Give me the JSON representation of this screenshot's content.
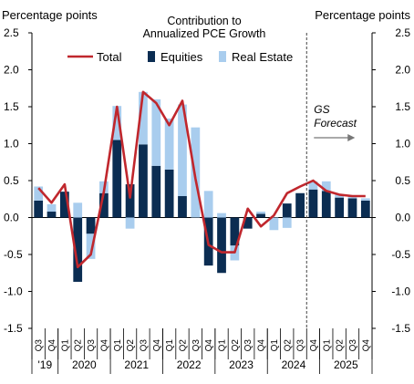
{
  "chart_data": {
    "type": "bar",
    "title": "Contribution to Annualized PCE Growth",
    "y_left_label": "Percentage points",
    "y_right_label": "Percentage points",
    "ylim": [
      -1.5,
      2.5
    ],
    "yticks": [
      -1.5,
      -1.0,
      -0.5,
      0.0,
      0.5,
      1.0,
      1.5,
      2.0,
      2.5
    ],
    "ytick_labels": [
      "-1.5",
      "-1.0",
      "-0.5",
      "0.0",
      "0.5",
      "1.0",
      "1.5",
      "2.0",
      "2.5"
    ],
    "legend_position": "top",
    "categories": [
      "Q3",
      "Q4",
      "Q1",
      "Q2",
      "Q3",
      "Q4",
      "Q1",
      "Q2",
      "Q3",
      "Q4",
      "Q1",
      "Q2",
      "Q3",
      "Q4",
      "Q1",
      "Q2",
      "Q3",
      "Q4",
      "Q1",
      "Q2",
      "Q3",
      "Q4",
      "Q1",
      "Q2",
      "Q3",
      "Q4"
    ],
    "year_groups": [
      {
        "label": "'19",
        "count": 2
      },
      {
        "label": "2020",
        "count": 4
      },
      {
        "label": "2021",
        "count": 4
      },
      {
        "label": "2022",
        "count": 4
      },
      {
        "label": "2023",
        "count": 4
      },
      {
        "label": "2024",
        "count": 4
      },
      {
        "label": "2025",
        "count": 4
      }
    ],
    "series": [
      {
        "name": "Total",
        "kind": "line",
        "color": "#c0272d",
        "values": [
          0.4,
          0.2,
          0.45,
          -0.67,
          -0.5,
          0.35,
          1.5,
          0.27,
          1.7,
          1.55,
          1.25,
          1.58,
          0.53,
          -0.37,
          -0.47,
          -0.47,
          0.12,
          -0.12,
          0.03,
          0.33,
          0.42,
          0.5,
          0.36,
          0.31,
          0.29,
          0.29
        ]
      },
      {
        "name": "Equities",
        "kind": "bar",
        "color": "#0b2d52",
        "values": [
          0.23,
          0.08,
          0.35,
          -0.87,
          -0.22,
          0.33,
          1.05,
          0.45,
          0.99,
          0.7,
          0.65,
          0.29,
          0.0,
          -0.65,
          -0.75,
          -0.38,
          -0.15,
          0.05,
          0.0,
          0.19,
          0.33,
          0.38,
          0.36,
          0.27,
          0.26,
          0.23
        ]
      },
      {
        "name": "Real Estate",
        "kind": "bar",
        "color": "#a9cdee",
        "values": [
          0.19,
          0.1,
          0.0,
          0.2,
          -0.34,
          0.16,
          0.46,
          -0.15,
          0.71,
          0.9,
          0.69,
          1.24,
          1.22,
          0.36,
          0.06,
          -0.2,
          0.0,
          0.03,
          -0.17,
          -0.14,
          0.0,
          0.11,
          0.13,
          0.04,
          0.03,
          0.03
        ]
      }
    ],
    "forecast": {
      "label_line1": "GS",
      "label_line2": "Forecast",
      "starts_after_index": 20
    }
  }
}
